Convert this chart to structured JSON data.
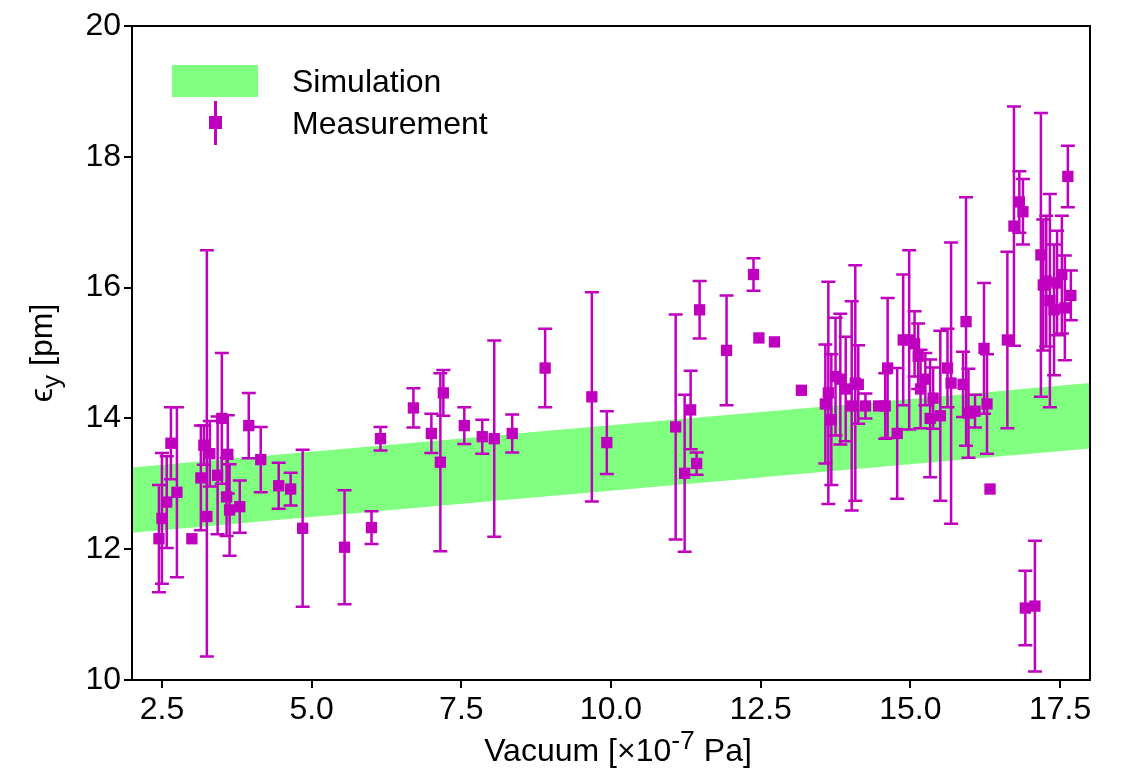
{
  "chart_data": {
    "type": "scatter",
    "xlabel": "Vacuum [×10$^{-7}$ Pa]",
    "ylabel": "ϵ$_{y}$ [pm]",
    "xlim": [
      2,
      18
    ],
    "ylim": [
      10,
      20
    ],
    "xticks": [
      {
        "value": 2.5,
        "label": "2.5"
      },
      {
        "value": 5,
        "label": "5.0"
      },
      {
        "value": 7.5,
        "label": "7.5"
      },
      {
        "value": 10,
        "label": "10.0"
      },
      {
        "value": 12.5,
        "label": "12.5"
      },
      {
        "value": 15,
        "label": "15.0"
      },
      {
        "value": 17.5,
        "label": "17.5"
      }
    ],
    "yticks": [
      10,
      12,
      14,
      16,
      18,
      20
    ],
    "grid": false,
    "legend": "top left",
    "marker": "square",
    "series": [
      {
        "name": "Simulation",
        "type": "area",
        "color": "#80ff80",
        "x": [
          2,
          18
        ],
        "values": [
          null,
          null
        ],
        "lower": [
          12.25,
          13.54
        ],
        "upper": [
          13.25,
          14.54
        ]
      },
      {
        "name": "Measurement",
        "type": "scatter",
        "color": "#bf00bf",
        "x": [
          2.45,
          2.5,
          2.58,
          2.65,
          2.75,
          3.0,
          3.15,
          3.2,
          3.25,
          3.3,
          3.43,
          3.5,
          3.6,
          3.58,
          3.63,
          3.8,
          3.95,
          4.15,
          4.45,
          4.65,
          4.85,
          5.55,
          6.0,
          6.15,
          6.7,
          7.0,
          7.15,
          7.2,
          7.55,
          7.85,
          8.05,
          8.35,
          8.9,
          9.68,
          9.93,
          11.08,
          11.23,
          11.33,
          11.43,
          11.48,
          11.93,
          12.38,
          12.47,
          12.73,
          13.18,
          13.58,
          13.63,
          13.68,
          13.75,
          13.83,
          13.92,
          14.02,
          14.08,
          14.13,
          14.25,
          14.47,
          14.58,
          14.62,
          14.78,
          14.88,
          14.98,
          15.07,
          15.13,
          15.17,
          15.25,
          15.33,
          15.38,
          15.5,
          15.62,
          15.68,
          15.88,
          15.93,
          15.97,
          16.08,
          16.23,
          16.28,
          16.33,
          16.62,
          16.73,
          16.82,
          16.88,
          16.92,
          17.08,
          17.18,
          17.22,
          17.27,
          17.33,
          17.4,
          17.45,
          17.53,
          17.58,
          17.63,
          17.68
        ],
        "values": [
          12.16,
          12.47,
          12.72,
          13.62,
          12.87,
          12.16,
          13.09,
          13.59,
          12.5,
          13.46,
          13.13,
          14.0,
          13.45,
          12.8,
          12.6,
          12.65,
          13.89,
          13.37,
          12.97,
          12.92,
          12.32,
          12.03,
          12.33,
          13.69,
          14.16,
          13.77,
          13.33,
          14.39,
          13.89,
          13.72,
          13.69,
          13.77,
          14.77,
          14.33,
          13.63,
          13.87,
          13.16,
          14.13,
          13.31,
          15.66,
          15.04,
          16.2,
          15.23,
          15.17,
          14.43,
          14.22,
          14.39,
          13.98,
          14.64,
          14.6,
          14.45,
          14.19,
          14.54,
          14.52,
          14.19,
          14.19,
          14.19,
          14.77,
          13.77,
          15.2,
          15.2,
          15.14,
          14.95,
          14.45,
          14.6,
          14.0,
          14.31,
          14.04,
          14.77,
          14.54,
          14.52,
          15.48,
          14.08,
          14.11,
          15.07,
          14.22,
          12.92,
          15.2,
          16.94,
          17.31,
          17.16,
          11.1,
          11.13,
          16.5,
          16.04,
          16.1,
          15.8,
          15.66,
          16.07,
          16.2,
          15.69,
          17.7,
          15.88
        ],
        "errors": [
          0.82,
          1.0,
          0.7,
          0.55,
          1.3,
          null,
          0.8,
          0.3,
          [
            10.36,
            16.57
          ],
          0.5,
          0.9,
          1.0,
          0.6,
          0.6,
          0.7,
          0.4,
          0.5,
          0.5,
          0.35,
          0.25,
          1.2,
          0.87,
          0.25,
          0.18,
          0.3,
          0.3,
          1.36,
          0.35,
          0.28,
          0.26,
          1.5,
          0.29,
          0.6,
          1.6,
          0.48,
          1.72,
          1.2,
          0.6,
          0.17,
          0.44,
          0.84,
          0.25,
          null,
          null,
          null,
          0.91,
          1.7,
          1.0,
          0.9,
          1.0,
          0.8,
          1.6,
          1.8,
          0.6,
          0.19,
          null,
          0.5,
          1.07,
          1.0,
          1.0,
          1.37,
          0.5,
          0.5,
          0.6,
          0.4,
          0.9,
          0.47,
          1.3,
          0.6,
          2.15,
          0.5,
          1.9,
          0.68,
          0.25,
          1.0,
          0.76,
          null,
          1.35,
          1.83,
          0.47,
          0.5,
          0.57,
          1.0,
          2.17,
          1.0,
          1.0,
          1.63,
          1.0,
          0.8,
          0.9,
          0.8,
          0.47,
          0.38
        ]
      }
    ]
  }
}
